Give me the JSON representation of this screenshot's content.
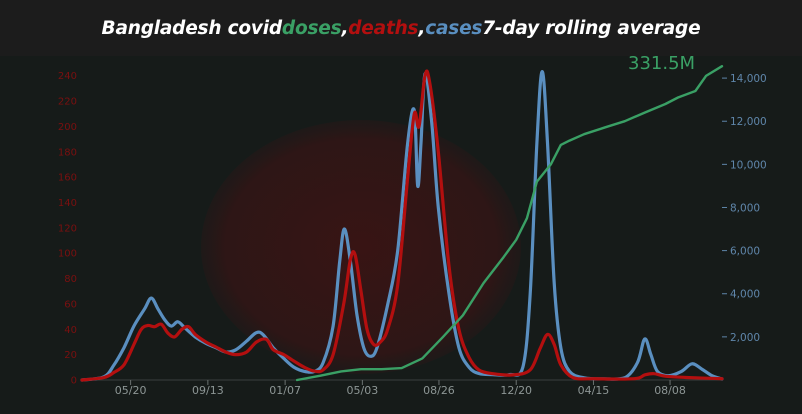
{
  "title": {
    "part1": "Bangladesh covid ",
    "doses": "doses",
    "sep1": ", ",
    "deaths": "deaths",
    "sep2": ", ",
    "cases": "cases",
    "part2": " 7-day rolling average"
  },
  "colors": {
    "doses": "#3aa065",
    "deaths": "#b30f0f",
    "cases": "#5a8fc0",
    "background": "#161b19",
    "title_bar": "#1c1c1c"
  },
  "chart_data": {
    "type": "line",
    "title": "Bangladesh covid doses, deaths, cases 7-day rolling average",
    "x_axis": {
      "type": "date",
      "range": [
        "2020-03-08",
        "2022-10-25"
      ],
      "tick_labels": [
        "05/20",
        "09/13",
        "01/07",
        "05/03",
        "08/26",
        "12/20",
        "04/15",
        "08/08"
      ],
      "tick_dates": [
        "2020-05-20",
        "2020-09-13",
        "2021-01-07",
        "2021-05-03",
        "2021-08-26",
        "2021-12-20",
        "2022-04-15",
        "2022-08-08"
      ]
    },
    "y_left": {
      "label": "",
      "range": [
        0,
        250
      ],
      "tick_labels": [
        "0",
        "20",
        "40",
        "60",
        "80",
        "100",
        "120",
        "140",
        "160",
        "180",
        "200",
        "220",
        "240"
      ],
      "tick_values": [
        0,
        20,
        40,
        60,
        80,
        100,
        120,
        140,
        160,
        180,
        200,
        220,
        240
      ]
    },
    "y_right": {
      "label": "",
      "range": [
        0,
        14700
      ],
      "tick_labels": [
        "2,000",
        "4,000",
        "6,000",
        "8,000",
        "10,000",
        "12,000",
        "14,000"
      ],
      "tick_values": [
        2000,
        4000,
        6000,
        8000,
        10000,
        12000,
        14000
      ]
    },
    "annotations": [
      {
        "text": "331.5M"
      }
    ],
    "grid": false,
    "series": [
      {
        "name": "cases",
        "axis": "right",
        "points": [
          [
            "2020-03-08",
            0
          ],
          [
            "2020-04-10",
            150
          ],
          [
            "2020-04-25",
            700
          ],
          [
            "2020-05-10",
            1500
          ],
          [
            "2020-05-25",
            2500
          ],
          [
            "2020-06-10",
            3300
          ],
          [
            "2020-06-20",
            3800
          ],
          [
            "2020-06-30",
            3300
          ],
          [
            "2020-07-10",
            2800
          ],
          [
            "2020-07-20",
            2500
          ],
          [
            "2020-07-30",
            2700
          ],
          [
            "2020-08-10",
            2400
          ],
          [
            "2020-08-25",
            2000
          ],
          [
            "2020-09-10",
            1700
          ],
          [
            "2020-09-25",
            1500
          ],
          [
            "2020-10-10",
            1300
          ],
          [
            "2020-10-25",
            1400
          ],
          [
            "2020-11-10",
            1800
          ],
          [
            "2020-11-25",
            2200
          ],
          [
            "2020-12-05",
            2100
          ],
          [
            "2020-12-20",
            1500
          ],
          [
            "2021-01-05",
            1000
          ],
          [
            "2021-01-20",
            600
          ],
          [
            "2021-02-05",
            400
          ],
          [
            "2021-02-20",
            400
          ],
          [
            "2021-03-05",
            800
          ],
          [
            "2021-03-20",
            2500
          ],
          [
            "2021-03-30",
            5500
          ],
          [
            "2021-04-06",
            7000
          ],
          [
            "2021-04-15",
            5500
          ],
          [
            "2021-04-25",
            3000
          ],
          [
            "2021-05-05",
            1500
          ],
          [
            "2021-05-15",
            1100
          ],
          [
            "2021-05-25",
            1500
          ],
          [
            "2021-06-10",
            3500
          ],
          [
            "2021-06-25",
            6000
          ],
          [
            "2021-07-10",
            11000
          ],
          [
            "2021-07-20",
            12500
          ],
          [
            "2021-07-25",
            9000
          ],
          [
            "2021-07-30",
            11000
          ],
          [
            "2021-08-05",
            14200
          ],
          [
            "2021-08-15",
            12000
          ],
          [
            "2021-08-25",
            8000
          ],
          [
            "2021-09-10",
            4000
          ],
          [
            "2021-09-25",
            1500
          ],
          [
            "2021-10-10",
            600
          ],
          [
            "2021-10-25",
            300
          ],
          [
            "2021-11-15",
            250
          ],
          [
            "2021-12-10",
            250
          ],
          [
            "2021-12-30",
            600
          ],
          [
            "2022-01-10",
            4000
          ],
          [
            "2022-01-20",
            11000
          ],
          [
            "2022-01-28",
            14300
          ],
          [
            "2022-02-05",
            11000
          ],
          [
            "2022-02-15",
            4500
          ],
          [
            "2022-02-25",
            1500
          ],
          [
            "2022-03-10",
            400
          ],
          [
            "2022-04-01",
            100
          ],
          [
            "2022-05-01",
            50
          ],
          [
            "2022-06-01",
            100
          ],
          [
            "2022-06-20",
            800
          ],
          [
            "2022-07-01",
            1900
          ],
          [
            "2022-07-10",
            1200
          ],
          [
            "2022-07-20",
            400
          ],
          [
            "2022-08-05",
            200
          ],
          [
            "2022-08-25",
            400
          ],
          [
            "2022-09-10",
            750
          ],
          [
            "2022-09-25",
            500
          ],
          [
            "2022-10-10",
            200
          ],
          [
            "2022-10-25",
            50
          ]
        ]
      },
      {
        "name": "deaths",
        "axis": "left",
        "points": [
          [
            "2020-03-08",
            0
          ],
          [
            "2020-04-10",
            2
          ],
          [
            "2020-04-25",
            6
          ],
          [
            "2020-05-10",
            12
          ],
          [
            "2020-05-25",
            28
          ],
          [
            "2020-06-05",
            40
          ],
          [
            "2020-06-15",
            43
          ],
          [
            "2020-06-25",
            42
          ],
          [
            "2020-07-05",
            44
          ],
          [
            "2020-07-15",
            37
          ],
          [
            "2020-07-25",
            34
          ],
          [
            "2020-08-05",
            40
          ],
          [
            "2020-08-15",
            42
          ],
          [
            "2020-08-25",
            36
          ],
          [
            "2020-09-10",
            30
          ],
          [
            "2020-09-25",
            26
          ],
          [
            "2020-10-10",
            22
          ],
          [
            "2020-10-25",
            20
          ],
          [
            "2020-11-10",
            22
          ],
          [
            "2020-11-25",
            30
          ],
          [
            "2020-12-10",
            32
          ],
          [
            "2020-12-20",
            24
          ],
          [
            "2021-01-05",
            20
          ],
          [
            "2021-01-20",
            15
          ],
          [
            "2021-02-05",
            10
          ],
          [
            "2021-02-20",
            7
          ],
          [
            "2021-03-05",
            8
          ],
          [
            "2021-03-20",
            20
          ],
          [
            "2021-04-05",
            60
          ],
          [
            "2021-04-15",
            95
          ],
          [
            "2021-04-22",
            99
          ],
          [
            "2021-05-01",
            70
          ],
          [
            "2021-05-10",
            40
          ],
          [
            "2021-05-20",
            28
          ],
          [
            "2021-05-30",
            30
          ],
          [
            "2021-06-10",
            40
          ],
          [
            "2021-06-25",
            75
          ],
          [
            "2021-07-10",
            160
          ],
          [
            "2021-07-20",
            210
          ],
          [
            "2021-07-27",
            200
          ],
          [
            "2021-08-05",
            240
          ],
          [
            "2021-08-12",
            235
          ],
          [
            "2021-08-25",
            180
          ],
          [
            "2021-09-10",
            90
          ],
          [
            "2021-09-25",
            40
          ],
          [
            "2021-10-10",
            18
          ],
          [
            "2021-10-25",
            8
          ],
          [
            "2021-11-15",
            5
          ],
          [
            "2021-12-15",
            4
          ],
          [
            "2022-01-10",
            8
          ],
          [
            "2022-01-25",
            25
          ],
          [
            "2022-02-05",
            36
          ],
          [
            "2022-02-15",
            28
          ],
          [
            "2022-02-25",
            12
          ],
          [
            "2022-03-15",
            2
          ],
          [
            "2022-04-15",
            1
          ],
          [
            "2022-06-15",
            1
          ],
          [
            "2022-07-01",
            4
          ],
          [
            "2022-07-15",
            5
          ],
          [
            "2022-08-01",
            3
          ],
          [
            "2022-09-01",
            2
          ],
          [
            "2022-10-25",
            1
          ]
        ]
      },
      {
        "name": "doses",
        "axis": "right",
        "points": [
          [
            "2021-01-25",
            0
          ],
          [
            "2021-03-01",
            200
          ],
          [
            "2021-04-01",
            400
          ],
          [
            "2021-05-01",
            500
          ],
          [
            "2021-06-01",
            500
          ],
          [
            "2021-07-01",
            550
          ],
          [
            "2021-08-01",
            1000
          ],
          [
            "2021-09-01",
            2000
          ],
          [
            "2021-10-01",
            3000
          ],
          [
            "2021-11-01",
            4500
          ],
          [
            "2021-12-01",
            5700
          ],
          [
            "2021-12-20",
            6500
          ],
          [
            "2022-01-05",
            7500
          ],
          [
            "2022-01-20",
            9200
          ],
          [
            "2022-02-10",
            10000
          ],
          [
            "2022-02-25",
            10900
          ],
          [
            "2022-03-10",
            11100
          ],
          [
            "2022-04-01",
            11400
          ],
          [
            "2022-05-01",
            11700
          ],
          [
            "2022-06-01",
            12000
          ],
          [
            "2022-07-01",
            12400
          ],
          [
            "2022-08-01",
            12800
          ],
          [
            "2022-08-20",
            13100
          ],
          [
            "2022-09-15",
            13400
          ],
          [
            "2022-10-01",
            14100
          ],
          [
            "2022-10-25",
            14550
          ]
        ]
      }
    ]
  }
}
